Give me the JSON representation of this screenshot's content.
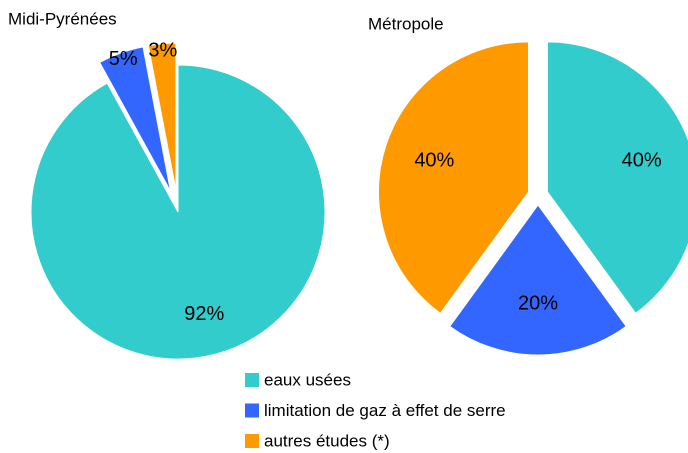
{
  "chart_data": [
    {
      "type": "pie",
      "title": "Midi-Pyrénées",
      "categories": [
        "eaux usées",
        "limitation de gaz à effet de serre",
        "autres études (*)"
      ],
      "values": [
        92,
        5,
        3
      ],
      "value_labels": [
        "92%",
        "5%",
        "3%"
      ],
      "colors": [
        "#33cccc",
        "#3366ff",
        "#ff9900"
      ]
    },
    {
      "type": "pie",
      "title": "Métropole",
      "categories": [
        "eaux usées",
        "limitation de gaz à effet de serre",
        "autres études (*)"
      ],
      "values": [
        40,
        20,
        40
      ],
      "value_labels": [
        "40%",
        "20%",
        "40%"
      ],
      "colors": [
        "#33cccc",
        "#3366ff",
        "#ff9900"
      ]
    }
  ]
}
